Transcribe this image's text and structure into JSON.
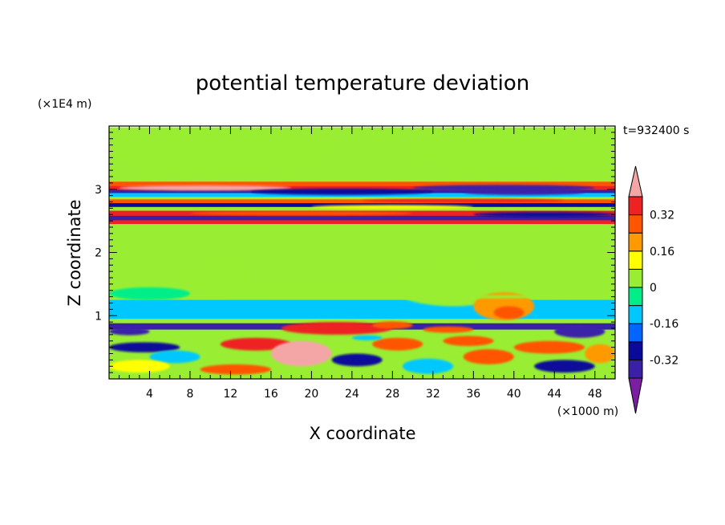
{
  "chart_data": {
    "type": "heatmap",
    "title": "potential temperature deviation",
    "xlabel": "X coordinate",
    "ylabel": "Z coordinate",
    "x_unit": "(×1000 m)",
    "y_unit": "(×1E4 m)",
    "time_label": "t=932400 s",
    "xlim": [
      0,
      50
    ],
    "ylim": [
      0,
      4
    ],
    "x_ticks": [
      4,
      8,
      12,
      16,
      20,
      24,
      28,
      32,
      36,
      40,
      44,
      48
    ],
    "y_ticks": [
      1,
      2,
      3
    ],
    "colorbar": {
      "labels": [
        "0.32",
        "0.16",
        "0",
        "-0.16",
        "-0.32"
      ],
      "label_values": [
        0.32,
        0.16,
        0,
        -0.16,
        -0.32
      ],
      "levels": [
        -0.4,
        -0.32,
        -0.24,
        -0.16,
        -0.08,
        0,
        0.08,
        0.16,
        0.24,
        0.32,
        0.4
      ],
      "colors": [
        "#7a1fa2",
        "#3a20a8",
        "#0a0a9a",
        "#0066ff",
        "#00c8ff",
        "#00ee88",
        "#99ee33",
        "#ffff00",
        "#ff9900",
        "#ff5500",
        "#ee2222",
        "#f4a6a6"
      ],
      "extend": "both"
    }
  }
}
